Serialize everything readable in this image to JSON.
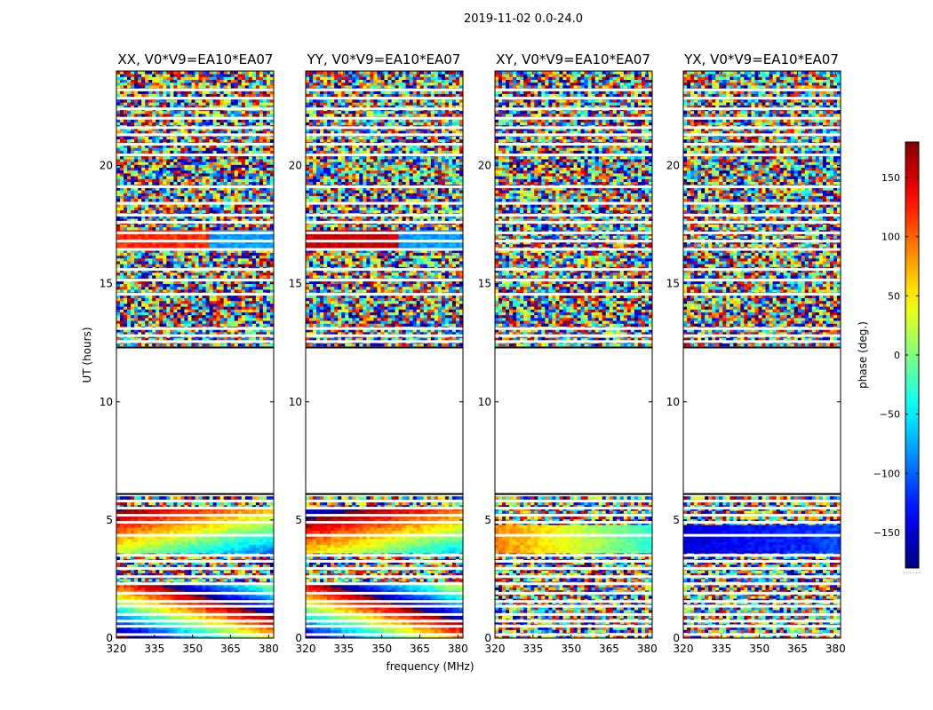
{
  "suptitle": "2019-11-02 0.0-24.0",
  "chart_data": {
    "type": "heatmap",
    "panels": [
      {
        "title": "XX, V0*V9=EA10*EA07",
        "pol": "XX"
      },
      {
        "title": "YY, V0*V9=EA10*EA07",
        "pol": "YY"
      },
      {
        "title": "XY, V0*V9=EA10*EA07",
        "pol": "XY"
      },
      {
        "title": "YX, V0*V9=EA10*EA07",
        "pol": "YX"
      }
    ],
    "xlabel": "frequency (MHz)",
    "ylabel": "UT (hours)",
    "xlim": [
      320,
      382
    ],
    "ylim": [
      0,
      24
    ],
    "xticks": [
      320,
      335,
      350,
      365,
      380
    ],
    "yticks": [
      0,
      5,
      10,
      15,
      20
    ],
    "flagged_gap_ut": [
      6.1,
      12.3
    ],
    "colorbar": {
      "label": "phase (deg.)",
      "colormap": "jet",
      "range": [
        -180,
        180
      ],
      "ticks": [
        150,
        100,
        50,
        0,
        -50,
        -100,
        -150
      ],
      "tick_labels": [
        "150",
        "100",
        "50",
        "0",
        "−50",
        "−100",
        "−150"
      ],
      "footer": "......"
    }
  }
}
